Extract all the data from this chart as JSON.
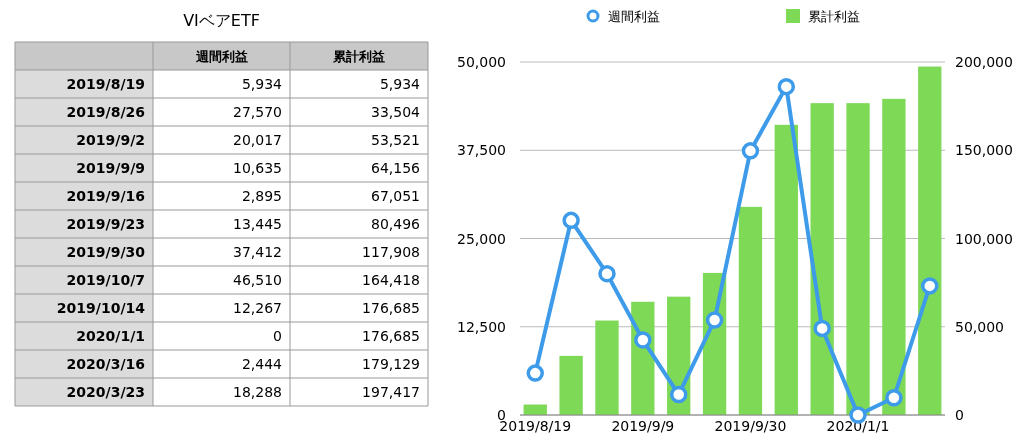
{
  "chart_data": [
    {
      "type": "other",
      "title": "VIベアETF",
      "categories": [
        "2019/8/19",
        "2019/8/26",
        "2019/9/2",
        "2019/9/9",
        "2019/9/16",
        "2019/9/23",
        "2019/9/30",
        "2019/10/7",
        "2019/10/14",
        "2020/1/1",
        "2020/3/16",
        "2020/3/23"
      ],
      "series": [
        {
          "name": "週間利益",
          "values": [
            5934,
            27570,
            20017,
            10635,
            2895,
            13445,
            37412,
            46510,
            12267,
            0,
            2444,
            18288
          ],
          "value_labels": [
            "5,934",
            "27,570",
            "20,017",
            "10,635",
            "2,895",
            "13,445",
            "37,412",
            "46,510",
            "12,267",
            "0",
            "2,444",
            "18,288"
          ]
        },
        {
          "name": "累計利益",
          "values": [
            5934,
            33504,
            53521,
            64156,
            67051,
            80496,
            117908,
            164418,
            176685,
            176685,
            179129,
            197417
          ],
          "value_labels": [
            "5,934",
            "33,504",
            "53,521",
            "64,156",
            "67,051",
            "80,496",
            "117,908",
            "164,418",
            "176,685",
            "176,685",
            "179,129",
            "197,417"
          ]
        }
      ]
    },
    {
      "type": "bar",
      "categories": [
        "2019/8/19",
        null,
        null,
        "2019/9/9",
        null,
        null,
        "2019/9/30",
        null,
        null,
        "2020/1/1",
        null,
        null
      ],
      "series": [
        {
          "name": "週間利益",
          "type": "line",
          "color": "#3d9be9",
          "values": [
            5934,
            27570,
            20017,
            10635,
            2895,
            13445,
            37412,
            46510,
            12267,
            0,
            2444,
            18288
          ]
        },
        {
          "name": "累計利益",
          "type": "bar",
          "axis": "y2",
          "color": "#7ed957",
          "values": [
            5934,
            33504,
            53521,
            64156,
            67051,
            80496,
            117908,
            164418,
            176685,
            176685,
            179129,
            197417
          ]
        }
      ],
      "ylim": [
        0,
        50000
      ],
      "yticks": [
        0,
        {
          "value": 12500,
          "label": "12,500"
        },
        {
          "value": 25000,
          "label": "25,000"
        },
        {
          "value": 37500,
          "label": "37,500"
        },
        {
          "value": 50000,
          "label": "50,000"
        }
      ],
      "y2lim": [
        0,
        200000
      ],
      "y2ticks": [
        0,
        {
          "value": 50000,
          "label": "50,000"
        },
        {
          "value": 100000,
          "label": "100,000"
        },
        {
          "value": 150000,
          "label": "150,000"
        },
        {
          "value": 200000,
          "label": "200,000"
        }
      ],
      "grid": "y",
      "legend": "top",
      "marker": "circle"
    }
  ]
}
